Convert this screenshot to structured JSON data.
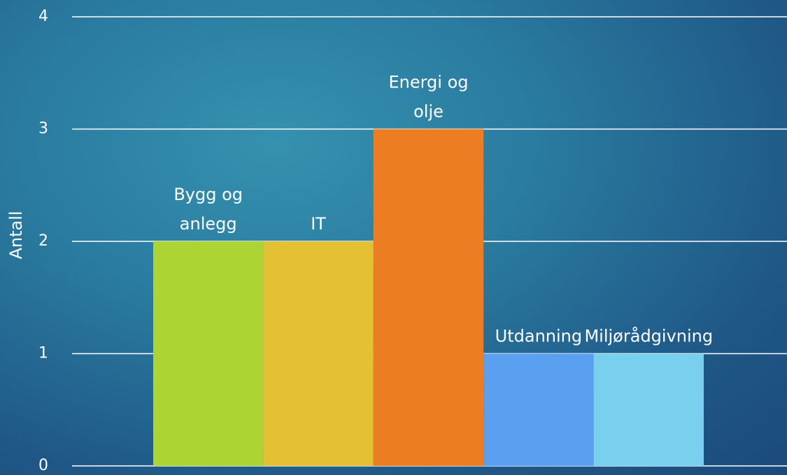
{
  "chart_data": {
    "type": "bar",
    "y_label": "Antall",
    "categories": [
      "Bygg og anlegg",
      "IT",
      "Energi og olje",
      "Utdanning",
      "Miljørådgivning"
    ],
    "values": [
      2,
      2,
      3,
      1,
      1
    ],
    "colors": [
      "#acd433",
      "#e4c035",
      "#ed7d22",
      "#5a9ff0",
      "#78d0ee"
    ],
    "ylim": [
      0,
      4
    ],
    "yticks": [
      0,
      1,
      2,
      3,
      4
    ],
    "grid": true
  }
}
